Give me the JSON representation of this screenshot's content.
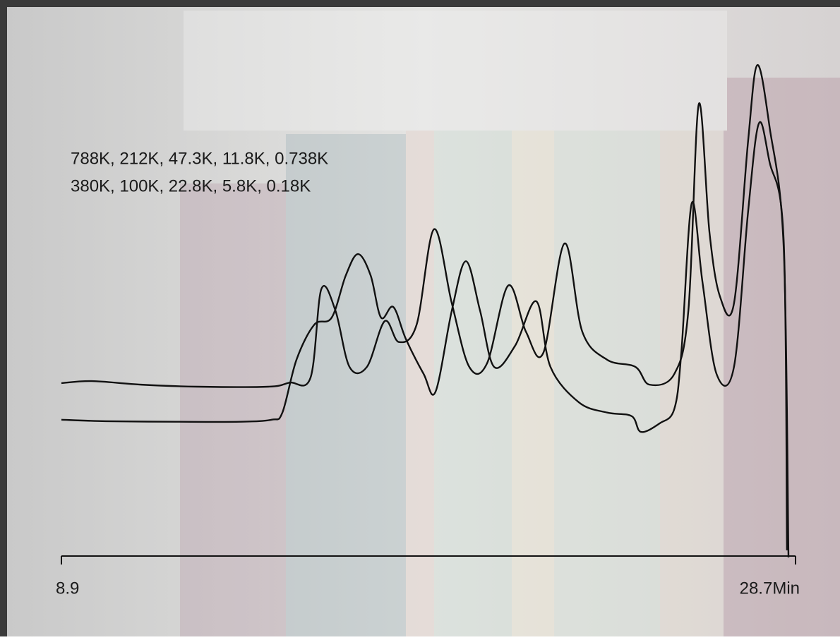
{
  "chart_data": {
    "type": "line",
    "annotations": [
      "788K, 212K, 47.3K, 11.8K, 0.738K",
      "380K, 100K, 22.8K, 5.8K, 0.18K"
    ],
    "xlim": [
      8.9,
      28.7
    ],
    "xticks": [
      8.9,
      {
        "value": 28.7,
        "label": "28.7Min"
      }
    ],
    "ylim": [
      0,
      100
    ],
    "series": [
      {
        "color": "#111111",
        "x": [
          8.9,
          9.72,
          11.05,
          12.57,
          14.48,
          15.05,
          15.62,
          15.91,
          16.29,
          16.67,
          17.14,
          17.62,
          18.0,
          18.48,
          18.95,
          19.43,
          19.9,
          20.38,
          20.95,
          21.43,
          21.9,
          22.47,
          22.95,
          23.62,
          24.38,
          24.76,
          25.43,
          25.81,
          26.09,
          26.38,
          26.66,
          27.04,
          27.42,
          27.67,
          28.0,
          28.38,
          28.51
        ],
        "values": [
          35.7,
          36.1,
          35.4,
          35.0,
          35.0,
          35.8,
          36.8,
          54.2,
          50.0,
          38.9,
          38.9,
          47.9,
          43.8,
          47.2,
          66.0,
          51.4,
          38.9,
          39.6,
          54.9,
          45.8,
          41.7,
          63.2,
          45.8,
          40.3,
          38.9,
          35.4,
          37.5,
          50.0,
          90.6,
          65.3,
          52.8,
          51.4,
          83.3,
          98.3,
          86.1,
          62.5,
          1.4
        ]
      },
      {
        "color": "#111111",
        "x": [
          8.9,
          10.1,
          12.0,
          13.72,
          14.57,
          14.86,
          15.24,
          15.72,
          16.19,
          16.57,
          16.9,
          17.24,
          17.52,
          17.85,
          18.19,
          18.67,
          18.99,
          19.43,
          19.81,
          20.19,
          20.57,
          21.14,
          21.71,
          22.09,
          22.86,
          23.62,
          24.28,
          24.53,
          25.04,
          25.43,
          25.62,
          25.9,
          26.19,
          26.57,
          27.04,
          27.42,
          27.71,
          28.0,
          28.38,
          28.47
        ],
        "values": [
          28.5,
          28.2,
          28.1,
          28.1,
          28.5,
          29.9,
          40.3,
          47.2,
          48.6,
          56.9,
          61.1,
          56.9,
          48.6,
          50.7,
          44.4,
          37.5,
          34.0,
          50.0,
          59.7,
          50.0,
          38.9,
          43.1,
          51.8,
          38.9,
          31.9,
          29.9,
          29.2,
          26.1,
          27.8,
          30.6,
          41.7,
          71.1,
          55.6,
          37.5,
          38.9,
          69.4,
          86.8,
          79.2,
          63.9,
          2.8
        ]
      }
    ]
  }
}
